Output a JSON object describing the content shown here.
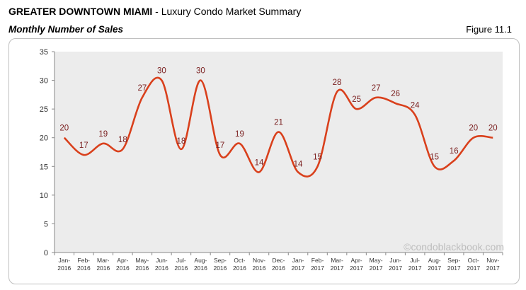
{
  "header": {
    "title_bold": "GREATER DOWNTOWN MIAMI",
    "title_rest": " - Luxury Condo Market Summary",
    "subtitle": "Monthly Number of Sales",
    "figure": "Figure 11.1"
  },
  "watermark": "©condoblackbook.com",
  "colors": {
    "line": "#d9401c",
    "plot_bg": "#ececec",
    "label": "#7a1f1f"
  },
  "chart_data": {
    "type": "line",
    "title": "Monthly Number of Sales",
    "xlabel": "",
    "ylabel": "",
    "ylim": [
      0,
      35
    ],
    "yticks": [
      0,
      5,
      10,
      15,
      20,
      25,
      30,
      35
    ],
    "grid": false,
    "legend": "none",
    "categories": [
      [
        "Jan-",
        "2016"
      ],
      [
        "Feb-",
        "2016"
      ],
      [
        "Mar-",
        "2016"
      ],
      [
        "Apr-",
        "2016"
      ],
      [
        "May-",
        "2016"
      ],
      [
        "Jun-",
        "2016"
      ],
      [
        "Jul-",
        "2016"
      ],
      [
        "Aug-",
        "2016"
      ],
      [
        "Sep-",
        "2016"
      ],
      [
        "Oct-",
        "2016"
      ],
      [
        "Nov-",
        "2016"
      ],
      [
        "Dec-",
        "2016"
      ],
      [
        "Jan-",
        "2017"
      ],
      [
        "Feb-",
        "2017"
      ],
      [
        "Mar-",
        "2017"
      ],
      [
        "Apr-",
        "2017"
      ],
      [
        "May-",
        "2017"
      ],
      [
        "Jun-",
        "2017"
      ],
      [
        "Jul-",
        "2017"
      ],
      [
        "Aug-",
        "2017"
      ],
      [
        "Sep-",
        "2017"
      ],
      [
        "Oct-",
        "2017"
      ],
      [
        "Nov-",
        "2017"
      ]
    ],
    "series": [
      {
        "values": [
          20,
          17,
          19,
          18,
          27,
          30,
          18,
          30,
          17,
          19,
          14,
          21,
          14,
          15,
          28,
          25,
          27,
          26,
          24,
          15,
          16,
          20,
          20
        ]
      }
    ]
  }
}
